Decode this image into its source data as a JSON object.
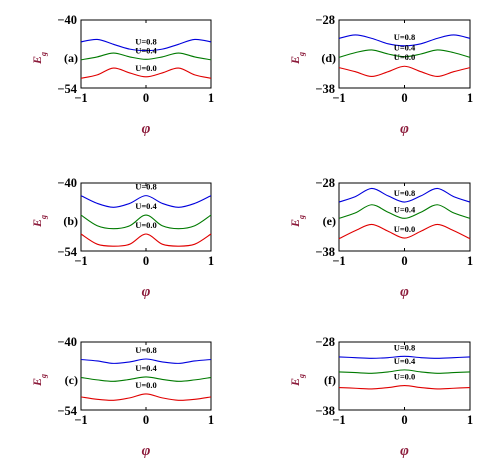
{
  "colors": {
    "series_blue": "#0000dd",
    "series_green": "#007a00",
    "series_red": "#e00000",
    "axis_label": "#8b1a3a"
  },
  "chart_data": [
    {
      "type": "line",
      "panel": "(a)",
      "xlabel": "φ",
      "ylabel": "E_g",
      "xlim": [
        -1,
        1
      ],
      "ylim": [
        -54,
        -40
      ],
      "xticks": [
        "-1",
        "0",
        "1"
      ],
      "yticks": [
        "-40",
        "-54"
      ],
      "x": [
        -1,
        -0.75,
        -0.5,
        -0.25,
        0,
        0.25,
        0.5,
        0.75,
        1
      ],
      "series": [
        {
          "name": "U=0.8",
          "color": "#0000dd",
          "values": [
            -44.5,
            -44.0,
            -45.0,
            -46.0,
            -46.3,
            -46.0,
            -45.0,
            -44.0,
            -44.5
          ]
        },
        {
          "name": "U=0.4",
          "color": "#007a00",
          "values": [
            -48.2,
            -47.6,
            -46.8,
            -47.6,
            -48.1,
            -47.6,
            -46.8,
            -47.6,
            -48.2
          ]
        },
        {
          "name": "U=0.0",
          "color": "#e00000",
          "values": [
            -52.0,
            -51.3,
            -49.9,
            -50.9,
            -51.7,
            -50.9,
            -49.9,
            -51.3,
            -52.0
          ]
        }
      ],
      "series_labels": [
        "U=0.8",
        "U=0.4",
        "U=0.0"
      ]
    },
    {
      "type": "line",
      "panel": "(d)",
      "xlabel": "φ",
      "ylabel": "E_g",
      "xlim": [
        -1,
        1
      ],
      "ylim": [
        -38,
        -28
      ],
      "xticks": [
        "-1",
        "0",
        "1"
      ],
      "yticks": [
        "-28",
        "-38"
      ],
      "x": [
        -1,
        -0.75,
        -0.5,
        -0.25,
        0,
        0.25,
        0.5,
        0.75,
        1
      ],
      "series": [
        {
          "name": "U=0.8",
          "color": "#0000dd",
          "values": [
            -30.7,
            -30.2,
            -30.7,
            -31.5,
            -31.8,
            -31.5,
            -30.7,
            -30.2,
            -30.7
          ]
        },
        {
          "name": "U=0.4",
          "color": "#007a00",
          "values": [
            -33.5,
            -32.8,
            -32.4,
            -33.0,
            -33.4,
            -33.0,
            -32.4,
            -32.8,
            -33.5
          ]
        },
        {
          "name": "U=0.0",
          "color": "#e00000",
          "values": [
            -35.0,
            -35.6,
            -36.3,
            -35.6,
            -34.8,
            -35.6,
            -36.3,
            -35.6,
            -35.0
          ]
        }
      ],
      "series_labels": [
        "U=0.8",
        "U=0.4",
        "U=0.0"
      ]
    },
    {
      "type": "line",
      "panel": "(b)",
      "xlabel": "φ",
      "ylabel": "E_g",
      "xlim": [
        -1,
        1
      ],
      "ylim": [
        -54,
        -40
      ],
      "xticks": [
        "-1",
        "0",
        "1"
      ],
      "yticks": [
        "-40",
        "-54"
      ],
      "x": [
        -1,
        -0.75,
        -0.5,
        -0.25,
        0,
        0.25,
        0.5,
        0.75,
        1
      ],
      "series": [
        {
          "name": "U=0.8",
          "color": "#0000dd",
          "values": [
            -42.6,
            -44.2,
            -45.0,
            -44.2,
            -42.6,
            -44.2,
            -45.0,
            -44.2,
            -42.6
          ]
        },
        {
          "name": "U=0.4",
          "color": "#007a00",
          "values": [
            -46.6,
            -48.8,
            -49.4,
            -48.8,
            -46.6,
            -48.8,
            -49.4,
            -48.8,
            -46.6
          ]
        },
        {
          "name": "U=0.0",
          "color": "#e00000",
          "values": [
            -50.5,
            -52.6,
            -53.0,
            -52.6,
            -50.5,
            -52.6,
            -53.0,
            -52.6,
            -50.5
          ]
        }
      ],
      "series_labels": [
        "U=0.8",
        "U=0.4",
        "U=0.0"
      ]
    },
    {
      "type": "line",
      "panel": "(e)",
      "xlabel": "φ",
      "ylabel": "E_g",
      "xlim": [
        -1,
        1
      ],
      "ylim": [
        -38,
        -28
      ],
      "xticks": [
        "-1",
        "0",
        "1"
      ],
      "yticks": [
        "-28",
        "-38"
      ],
      "x": [
        -1,
        -0.75,
        -0.5,
        -0.25,
        0,
        0.25,
        0.5,
        0.75,
        1
      ],
      "series": [
        {
          "name": "U=0.8",
          "color": "#0000dd",
          "values": [
            -30.8,
            -30.0,
            -28.8,
            -29.9,
            -30.8,
            -29.9,
            -28.8,
            -30.0,
            -30.8
          ]
        },
        {
          "name": "U=0.4",
          "color": "#007a00",
          "values": [
            -33.2,
            -32.4,
            -31.2,
            -32.3,
            -33.2,
            -32.3,
            -31.2,
            -32.4,
            -33.2
          ]
        },
        {
          "name": "U=0.0",
          "color": "#e00000",
          "values": [
            -36.2,
            -35.0,
            -34.1,
            -35.1,
            -36.1,
            -35.1,
            -34.1,
            -35.0,
            -36.2
          ]
        }
      ],
      "series_labels": [
        "U=0.8",
        "U=0.4",
        "U=0.0"
      ]
    },
    {
      "type": "line",
      "panel": "(c)",
      "xlabel": "φ",
      "ylabel": "E_g",
      "xlim": [
        -1,
        1
      ],
      "ylim": [
        -54,
        -40
      ],
      "xticks": [
        "-1",
        "0",
        "1"
      ],
      "yticks": [
        "-40",
        "-54"
      ],
      "x": [
        -1,
        -0.75,
        -0.5,
        -0.25,
        0,
        0.25,
        0.5,
        0.75,
        1
      ],
      "series": [
        {
          "name": "U=0.8",
          "color": "#0000dd",
          "values": [
            -43.6,
            -43.9,
            -44.4,
            -44.1,
            -43.5,
            -44.1,
            -44.4,
            -43.9,
            -43.6
          ]
        },
        {
          "name": "U=0.4",
          "color": "#007a00",
          "values": [
            -47.3,
            -47.8,
            -48.1,
            -47.7,
            -47.2,
            -47.7,
            -48.1,
            -47.8,
            -47.3
          ]
        },
        {
          "name": "U=0.0",
          "color": "#e00000",
          "values": [
            -51.3,
            -51.8,
            -52.0,
            -51.5,
            -50.7,
            -51.5,
            -52.0,
            -51.8,
            -51.3
          ]
        }
      ],
      "series_labels": [
        "U=0.8",
        "U=0.4",
        "U=0.0"
      ]
    },
    {
      "type": "line",
      "panel": "(f)",
      "xlabel": "φ",
      "ylabel": "E_g",
      "xlim": [
        -1,
        1
      ],
      "ylim": [
        -38,
        -28
      ],
      "xticks": [
        "-1",
        "0",
        "1"
      ],
      "yticks": [
        "-28",
        "-38"
      ],
      "x": [
        -1,
        -0.75,
        -0.5,
        -0.25,
        0,
        0.25,
        0.5,
        0.75,
        1
      ],
      "series": [
        {
          "name": "U=0.8",
          "color": "#0000dd",
          "values": [
            -30.2,
            -30.3,
            -30.4,
            -30.3,
            -30.1,
            -30.3,
            -30.4,
            -30.3,
            -30.2
          ]
        },
        {
          "name": "U=0.4",
          "color": "#007a00",
          "values": [
            -32.4,
            -32.5,
            -32.6,
            -32.4,
            -32.1,
            -32.4,
            -32.6,
            -32.5,
            -32.4
          ]
        },
        {
          "name": "U=0.0",
          "color": "#e00000",
          "values": [
            -34.7,
            -34.8,
            -34.9,
            -34.7,
            -34.4,
            -34.7,
            -34.9,
            -34.8,
            -34.7
          ]
        }
      ],
      "series_labels": [
        "U=0.8",
        "U=0.4",
        "U=0.0"
      ]
    }
  ]
}
